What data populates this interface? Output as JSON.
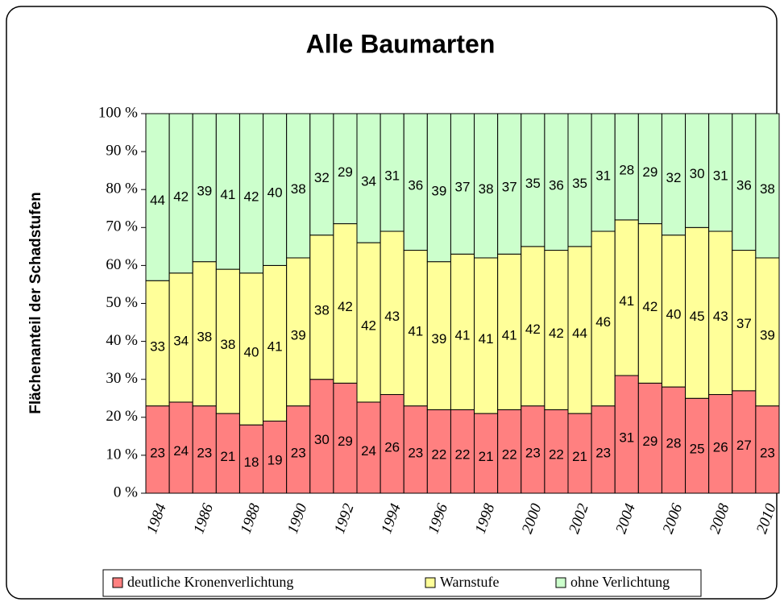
{
  "chart_data": {
    "type": "bar",
    "stacked": true,
    "title": "Alle Baumarten",
    "y_label": "Flächenanteil der Schadstufen",
    "categories": [
      "1984",
      null,
      "1986",
      null,
      "1988",
      null,
      "1990",
      null,
      "1992",
      null,
      "1994",
      null,
      "1996",
      null,
      "1998",
      null,
      "2000",
      null,
      "2002",
      null,
      "2004",
      null,
      "2006",
      null,
      "2008",
      null,
      "2010"
    ],
    "series": [
      {
        "name": "deutliche Kronenverlichtung",
        "color": "#ff8080",
        "values": [
          23,
          24,
          23,
          21,
          18,
          19,
          23,
          30,
          29,
          24,
          26,
          23,
          22,
          22,
          21,
          22,
          23,
          22,
          21,
          23,
          31,
          29,
          28,
          25,
          26,
          27,
          23
        ]
      },
      {
        "name": "Warnstufe",
        "color": "#ffff99",
        "values": [
          33,
          34,
          38,
          38,
          40,
          41,
          39,
          38,
          42,
          42,
          43,
          41,
          39,
          41,
          41,
          41,
          42,
          42,
          44,
          46,
          41,
          42,
          40,
          45,
          43,
          37,
          39
        ]
      },
      {
        "name": "ohne Verlichtung",
        "color": "#ccffcc",
        "values": [
          44,
          42,
          39,
          41,
          42,
          40,
          38,
          32,
          29,
          34,
          31,
          36,
          39,
          37,
          38,
          37,
          35,
          36,
          35,
          31,
          28,
          29,
          32,
          30,
          31,
          36,
          38
        ]
      }
    ],
    "ylim": [
      0,
      100
    ],
    "yticks": [
      {
        "value": 0,
        "label": "0 %"
      },
      {
        "value": 10,
        "label": "10 %"
      },
      {
        "value": 20,
        "label": "20 %"
      },
      {
        "value": 30,
        "label": "30 %"
      },
      {
        "value": 40,
        "label": "40 %"
      },
      {
        "value": 50,
        "label": "50 %"
      },
      {
        "value": 60,
        "label": "60 %"
      },
      {
        "value": 70,
        "label": "70 %"
      },
      {
        "value": 80,
        "label": "80 %"
      },
      {
        "value": 90,
        "label": "90 %"
      },
      {
        "value": 100,
        "label": "100 %"
      }
    ],
    "legend": "bottom"
  }
}
